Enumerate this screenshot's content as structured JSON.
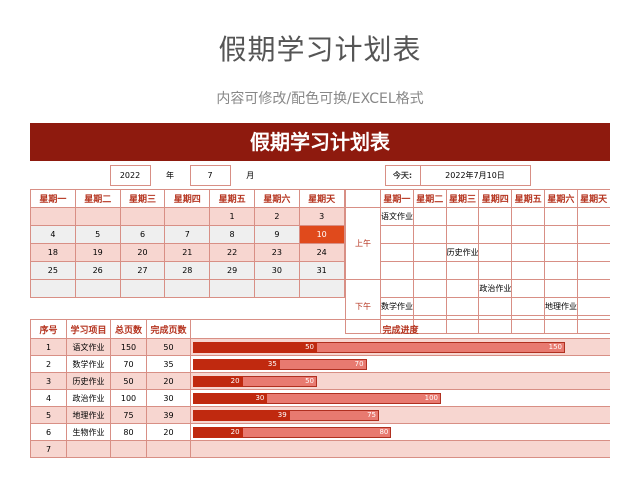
{
  "title": "假期学习计划表",
  "subtitle": "内容可修改/配色可换/EXCEL格式",
  "banner": "假期学习计划表",
  "header": {
    "year": "2022",
    "year_label": "年",
    "month": "7",
    "month_label": "月",
    "today_label": "今天:",
    "today_value": "2022年7月10日"
  },
  "weekdays": [
    "星期一",
    "星期二",
    "星期三",
    "星期四",
    "星期五",
    "星期六",
    "星期天"
  ],
  "calendar": [
    [
      "",
      "",
      "",
      "",
      "1",
      "2",
      "3"
    ],
    [
      "4",
      "5",
      "6",
      "7",
      "8",
      "9",
      "10"
    ],
    [
      "18",
      "19",
      "20",
      "21",
      "22",
      "23",
      "24"
    ],
    [
      "25",
      "26",
      "27",
      "28",
      "29",
      "30",
      "31"
    ],
    [
      "",
      "",
      "",
      "",
      "",
      "",
      ""
    ]
  ],
  "highlight_day": "10",
  "schedule": {
    "am_label": "上午",
    "pm_label": "下午",
    "am_rows": [
      [
        "语文作业",
        "",
        "",
        "",
        "",
        "",
        ""
      ],
      [
        "",
        "",
        "",
        "",
        "",
        "",
        ""
      ],
      [
        "",
        "",
        "历史作业",
        "",
        "",
        "",
        ""
      ],
      [
        "",
        "",
        "",
        "",
        "",
        "",
        ""
      ]
    ],
    "pm_rows": [
      [
        "",
        "",
        "",
        "政治作业",
        "",
        "",
        ""
      ],
      [
        "数学作业",
        "",
        "",
        "",
        "",
        "地理作业",
        ""
      ],
      [
        "",
        "",
        "",
        "",
        "",
        "",
        ""
      ]
    ]
  },
  "progress_headers": [
    "序号",
    "学习项目",
    "总页数",
    "完成页数",
    "完成进度"
  ],
  "progress": [
    {
      "no": "1",
      "item": "语文作业",
      "total": "150",
      "done": "50"
    },
    {
      "no": "2",
      "item": "数学作业",
      "total": "70",
      "done": "35"
    },
    {
      "no": "3",
      "item": "历史作业",
      "total": "50",
      "done": "20"
    },
    {
      "no": "4",
      "item": "政治作业",
      "total": "100",
      "done": "30"
    },
    {
      "no": "5",
      "item": "地理作业",
      "total": "75",
      "done": "39"
    },
    {
      "no": "6",
      "item": "生物作业",
      "total": "80",
      "done": "20"
    },
    {
      "no": "7",
      "item": "",
      "total": "",
      "done": ""
    }
  ],
  "colors": {
    "banner": "#8e1a0e",
    "accent": "#e04a1c",
    "bar_done": "#c0290f",
    "bar_total": "#e87a70"
  }
}
